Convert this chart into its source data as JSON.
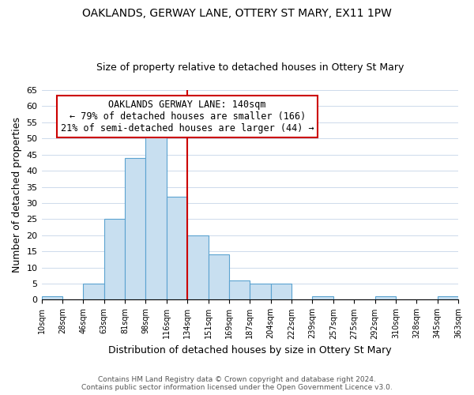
{
  "title": "OAKLANDS, GERWAY LANE, OTTERY ST MARY, EX11 1PW",
  "subtitle": "Size of property relative to detached houses in Ottery St Mary",
  "xlabel": "Distribution of detached houses by size in Ottery St Mary",
  "ylabel": "Number of detached properties",
  "bin_labels": [
    "10sqm",
    "28sqm",
    "46sqm",
    "63sqm",
    "81sqm",
    "98sqm",
    "116sqm",
    "134sqm",
    "151sqm",
    "169sqm",
    "187sqm",
    "204sqm",
    "222sqm",
    "239sqm",
    "257sqm",
    "275sqm",
    "292sqm",
    "310sqm",
    "328sqm",
    "345sqm",
    "363sqm"
  ],
  "bar_heights": [
    1,
    0,
    5,
    25,
    44,
    51,
    32,
    20,
    14,
    6,
    5,
    5,
    0,
    1,
    0,
    0,
    1,
    0,
    0,
    1
  ],
  "bar_color": "#c8dff0",
  "bar_edge_color": "#5ba3d0",
  "vline_x_index": 7,
  "vline_color": "#cc0000",
  "annotation_title": "OAKLANDS GERWAY LANE: 140sqm",
  "annotation_line1": "← 79% of detached houses are smaller (166)",
  "annotation_line2": "21% of semi-detached houses are larger (44) →",
  "annotation_box_edge": "#cc0000",
  "ylim": [
    0,
    65
  ],
  "yticks": [
    0,
    5,
    10,
    15,
    20,
    25,
    30,
    35,
    40,
    45,
    50,
    55,
    60,
    65
  ],
  "footer1": "Contains HM Land Registry data © Crown copyright and database right 2024.",
  "footer2": "Contains public sector information licensed under the Open Government Licence v3.0."
}
